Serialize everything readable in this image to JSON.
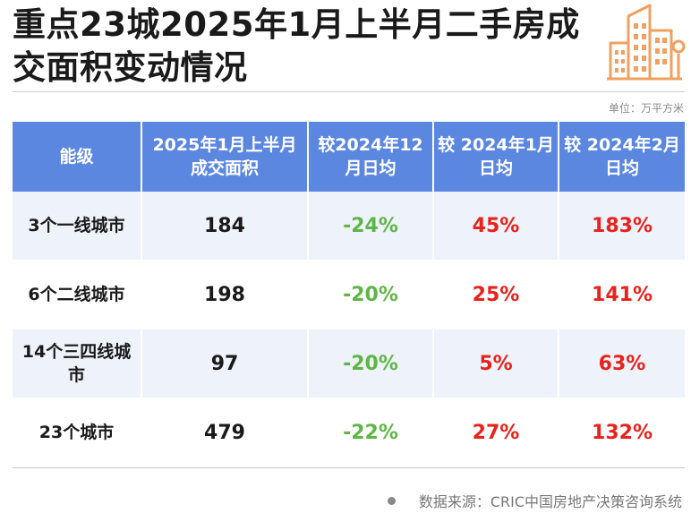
{
  "title": "重点23城2025年1月上半月二手房成交面积变动情况",
  "unit": "单位：万平方米",
  "table": {
    "headers": [
      "能级",
      "2025年1月上半月成交面积",
      "较2024年12月日均",
      "较 2024年1月日均",
      "较 2024年2月日均"
    ],
    "rows": [
      [
        "3个一线城市",
        "184",
        "-24%",
        "45%",
        "183%"
      ],
      [
        "6个二线城市",
        "198",
        "-20%",
        "25%",
        "141%"
      ],
      [
        "14个三四线城市",
        "97",
        "-20%",
        "5%",
        "63%"
      ],
      [
        "23个城市",
        "479",
        "-22%",
        "27%",
        "132%"
      ]
    ]
  },
  "source": "数据来源：CRIC中国房地产决策咨询系统",
  "colors": {
    "header_bg": "#5b87e0",
    "positive": "#e8221c",
    "negative": "#5fb547",
    "logo": "#f0a060"
  },
  "icons": {
    "logo": "building-icon"
  }
}
